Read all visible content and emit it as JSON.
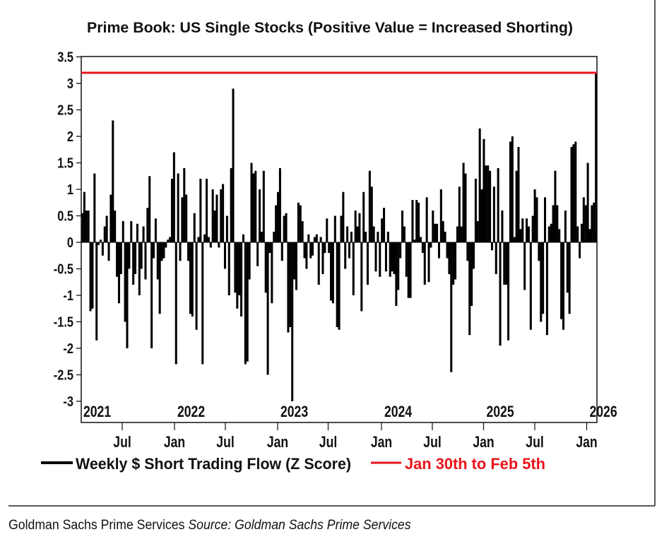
{
  "chart_data": {
    "type": "bar",
    "title": "Prime Book: US Single Stocks (Positive Value = Increased Shorting)",
    "xlabel": "",
    "ylabel": "",
    "ylim": [
      -3,
      3.5
    ],
    "yticks": [
      "3.5",
      "3",
      "2.5",
      "2",
      "1.5",
      "1",
      "0.5",
      "0",
      "-0.5",
      "-1",
      "-1.5",
      "-2",
      "-2.5",
      "-3"
    ],
    "x_range": [
      "2021-02",
      "2026-02"
    ],
    "year_labels": [
      "2021",
      "2022",
      "2023",
      "2024",
      "2025",
      "2026"
    ],
    "month_labels": [
      "Jul",
      "Jan",
      "Jul",
      "Jan",
      "Jul",
      "Jan",
      "Jul",
      "Jan",
      "Jul",
      "Jan"
    ],
    "series": [
      {
        "name": "Weekly $ Short Trading Flow (Z Score)",
        "color": "#000000",
        "frequency": "weekly",
        "values": [
          0.55,
          0.95,
          0.6,
          0.6,
          -1.3,
          -1.25,
          1.3,
          -1.85,
          -0.05,
          0.05,
          -0.25,
          0.3,
          0.5,
          -0.35,
          0.9,
          2.3,
          0.6,
          -0.65,
          -1.15,
          -0.6,
          0.4,
          -1.5,
          -2.0,
          -0.5,
          0.4,
          -0.8,
          -0.6,
          0.35,
          -1.0,
          -0.5,
          0.3,
          -0.7,
          0.65,
          1.25,
          -2.0,
          -0.3,
          0.45,
          -0.7,
          -1.35,
          -0.35,
          -0.3,
          -0.1,
          0.05,
          0.1,
          1.2,
          1.7,
          -2.3,
          1.3,
          -0.35,
          0.85,
          1.4,
          0.9,
          -0.35,
          -1.35,
          -1.4,
          0.55,
          -1.65,
          0.1,
          1.2,
          -2.3,
          0.15,
          1.2,
          0.1,
          -0.1,
          1.0,
          0.6,
          0.9,
          -0.1,
          1.0,
          1.1,
          -0.5,
          0.5,
          -1.0,
          1.4,
          2.9,
          -0.95,
          -1.25,
          -1.0,
          -1.4,
          0.15,
          -2.3,
          -2.25,
          -0.7,
          1.5,
          1.3,
          1.35,
          -0.45,
          1.0,
          0.2,
          1.35,
          -0.95,
          -2.5,
          -0.2,
          -1.15,
          0.2,
          0.7,
          0.95,
          1.4,
          -0.35,
          0.5,
          0.55,
          -1.7,
          -1.6,
          -3.0,
          -0.7,
          -0.9,
          0.75,
          0.7,
          0.4,
          -0.3,
          -0.5,
          0.15,
          -0.3,
          -0.25,
          0.1,
          0.15,
          -0.8,
          0.1,
          -0.6,
          -0.2,
          0.45,
          -0.2,
          -1.1,
          -1.15,
          0.5,
          -1.6,
          -1.65,
          0.5,
          0.95,
          -0.5,
          0.3,
          -0.3,
          0.2,
          -1.0,
          0.6,
          0.3,
          0.55,
          -1.3,
          0.95,
          0.2,
          -0.8,
          1.35,
          1.05,
          0.3,
          -0.55,
          0.2,
          -0.65,
          0.45,
          0.65,
          -0.55,
          0.2,
          -0.65,
          -0.55,
          -0.6,
          -1.2,
          -0.9,
          -0.3,
          0.6,
          0.3,
          -0.65,
          -1.05,
          -1.05,
          0.8,
          0.05,
          0.8,
          0.75,
          0.1,
          -0.2,
          -0.8,
          0.85,
          -0.75,
          -0.1,
          0.6,
          0.35,
          0.35,
          -0.3,
          1.0,
          0.4,
          0.2,
          -0.3,
          -0.6,
          -2.45,
          -0.8,
          -0.7,
          0.3,
          1.05,
          0.3,
          1.5,
          1.3,
          -0.35,
          -1.75,
          -1.2,
          -0.5,
          1.2,
          0.4,
          2.15,
          1.0,
          1.95,
          1.45,
          1.45,
          1.35,
          -0.15,
          1.05,
          -0.6,
          1.4,
          -1.95,
          0.6,
          -0.8,
          -0.8,
          -1.85,
          1.9,
          2.0,
          0.1,
          1.35,
          1.8,
          0.25,
          0.45,
          -0.9,
          0.45,
          0.3,
          -1.65,
          0.5,
          1.0,
          0.85,
          -0.35,
          -1.5,
          -1.35,
          0.85,
          -1.75,
          0.3,
          0.35,
          0.7,
          1.35,
          0.7,
          0.25,
          -1.45,
          -1.65,
          0.6,
          -0.95,
          -1.35,
          1.8,
          1.85,
          1.9,
          0.3,
          -0.3,
          0.35,
          0.85,
          0.7,
          1.5,
          0.25,
          0.7,
          0.75,
          3.2
        ]
      },
      {
        "name": "Jan 30th to Feb 5th",
        "color": "#e8141b",
        "type": "hline",
        "value": 3.2
      }
    ],
    "legend_position": "bottom",
    "grid": false
  },
  "footer": {
    "credit": "Goldman Sachs Prime Services",
    "source_label": "Source: Goldman Sachs Prime Services"
  }
}
